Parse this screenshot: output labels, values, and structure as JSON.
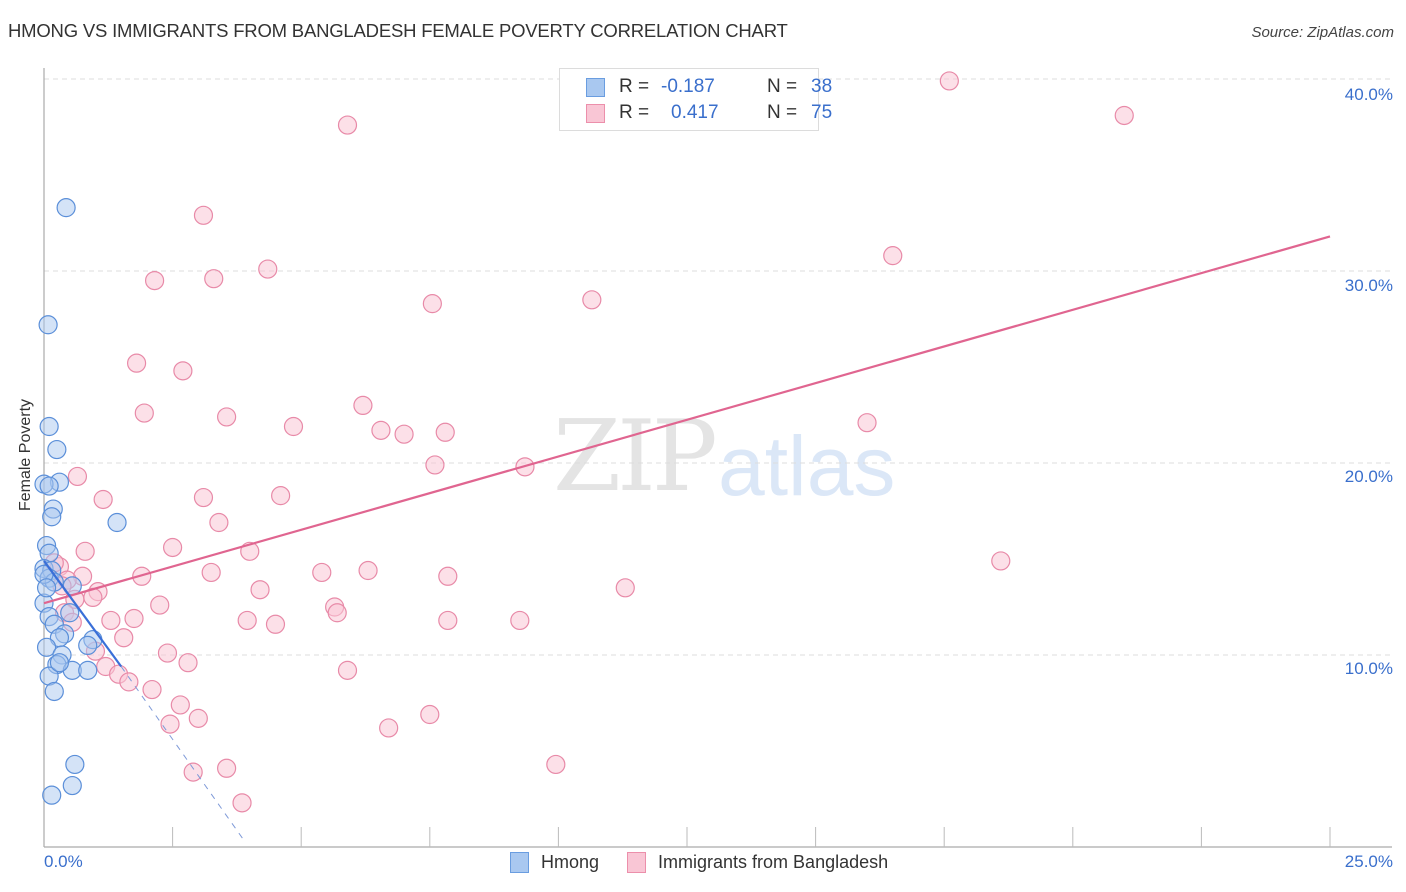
{
  "header": {
    "title": "HMONG VS IMMIGRANTS FROM BANGLADESH FEMALE POVERTY CORRELATION CHART",
    "source": "Source: ZipAtlas.com"
  },
  "watermark": {
    "zip": "ZIP",
    "atlas": "atlas"
  },
  "legend_top": {
    "rows": [
      {
        "r_label": "R =",
        "r_value": "-0.187",
        "n_label": "N =",
        "n_value": "38",
        "color": "#a9c8f0",
        "border": "#6a9de0"
      },
      {
        "r_label": "R =",
        "r_value": "0.417",
        "n_label": "N =",
        "n_value": "75",
        "color": "#f9c6d5",
        "border": "#ec8fab"
      }
    ]
  },
  "legend_bottom": {
    "items": [
      {
        "label": "Hmong",
        "color": "#a9c8f0",
        "border": "#6a9de0"
      },
      {
        "label": "Immigrants from Bangladesh",
        "color": "#f9c6d5",
        "border": "#ec8fab"
      }
    ]
  },
  "axes": {
    "ylabel": "Female Poverty",
    "yticks": [
      "10.0%",
      "20.0%",
      "30.0%",
      "40.0%"
    ],
    "xticks": [
      "0.0%",
      "25.0%"
    ]
  },
  "colors": {
    "hmong_fill": "#a9c8f0",
    "hmong_stroke": "#5b8fd9",
    "hmong_line": "#3a6fd8",
    "bangladesh_fill": "#f9c6d5",
    "bangladesh_stroke": "#e88aa8",
    "bangladesh_line": "#e06590",
    "tick_label": "#3a6fcc"
  },
  "chart_data": {
    "type": "scatter",
    "title": "HMONG VS IMMIGRANTS FROM BANGLADESH FEMALE POVERTY CORRELATION CHART",
    "xlabel": "",
    "ylabel": "Female Poverty",
    "xlim": [
      0,
      25
    ],
    "ylim": [
      0,
      42
    ],
    "x_ticks": [
      "0.0%",
      "25.0%"
    ],
    "y_ticks": [
      "10.0%",
      "20.0%",
      "30.0%",
      "40.0%"
    ],
    "grid": true,
    "legend_position": "top-center",
    "series": [
      {
        "name": "Hmong",
        "R": -0.187,
        "N": 38,
        "trend": {
          "x0": 0.0,
          "y0": 14.9,
          "x1": 1.5,
          "y1": 9.4,
          "dashed_extension_to": [
            3.9,
            0.3
          ]
        },
        "points": [
          [
            0.43,
            33.3
          ],
          [
            0.08,
            27.2
          ],
          [
            0.1,
            21.9
          ],
          [
            0.25,
            20.7
          ],
          [
            0.3,
            19.0
          ],
          [
            0.0,
            18.9
          ],
          [
            0.1,
            18.8
          ],
          [
            0.18,
            17.6
          ],
          [
            0.15,
            17.2
          ],
          [
            1.42,
            16.9
          ],
          [
            0.05,
            15.7
          ],
          [
            0.1,
            15.3
          ],
          [
            0.0,
            14.5
          ],
          [
            0.15,
            14.4
          ],
          [
            0.1,
            14.0
          ],
          [
            0.2,
            13.8
          ],
          [
            0.55,
            13.6
          ],
          [
            0.0,
            12.7
          ],
          [
            0.5,
            12.2
          ],
          [
            0.1,
            12.0
          ],
          [
            0.2,
            11.6
          ],
          [
            0.4,
            11.1
          ],
          [
            0.95,
            10.8
          ],
          [
            0.3,
            10.9
          ],
          [
            0.05,
            10.4
          ],
          [
            0.85,
            10.5
          ],
          [
            0.35,
            10.0
          ],
          [
            0.25,
            9.5
          ],
          [
            0.55,
            9.2
          ],
          [
            0.85,
            9.2
          ],
          [
            0.1,
            8.9
          ],
          [
            0.2,
            8.1
          ],
          [
            0.6,
            4.3
          ],
          [
            0.55,
            3.2
          ],
          [
            0.15,
            2.7
          ],
          [
            0.0,
            14.2
          ],
          [
            0.05,
            13.5
          ],
          [
            0.3,
            9.6
          ]
        ]
      },
      {
        "name": "Immigrants from Bangladesh",
        "R": 0.417,
        "N": 75,
        "trend": {
          "x0": 0.0,
          "y0": 12.7,
          "x1": 25.0,
          "y1": 31.8
        },
        "points": [
          [
            17.6,
            39.9
          ],
          [
            21.0,
            38.1
          ],
          [
            5.9,
            37.6
          ],
          [
            3.1,
            32.9
          ],
          [
            16.5,
            30.8
          ],
          [
            4.35,
            30.1
          ],
          [
            3.3,
            29.6
          ],
          [
            2.15,
            29.5
          ],
          [
            7.55,
            28.3
          ],
          [
            10.65,
            28.5
          ],
          [
            1.8,
            25.2
          ],
          [
            2.7,
            24.8
          ],
          [
            6.2,
            23.0
          ],
          [
            1.95,
            22.6
          ],
          [
            3.55,
            22.4
          ],
          [
            16.0,
            22.1
          ],
          [
            4.85,
            21.9
          ],
          [
            6.55,
            21.7
          ],
          [
            7.0,
            21.5
          ],
          [
            7.8,
            21.6
          ],
          [
            7.6,
            19.9
          ],
          [
            9.35,
            19.8
          ],
          [
            0.65,
            19.3
          ],
          [
            1.15,
            18.1
          ],
          [
            3.1,
            18.2
          ],
          [
            4.6,
            18.3
          ],
          [
            3.4,
            16.9
          ],
          [
            18.6,
            14.9
          ],
          [
            2.5,
            15.6
          ],
          [
            0.8,
            15.4
          ],
          [
            4.0,
            15.4
          ],
          [
            0.3,
            14.6
          ],
          [
            3.25,
            14.3
          ],
          [
            5.4,
            14.3
          ],
          [
            6.3,
            14.4
          ],
          [
            0.75,
            14.1
          ],
          [
            1.9,
            14.1
          ],
          [
            7.85,
            14.1
          ],
          [
            11.3,
            13.5
          ],
          [
            0.45,
            13.9
          ],
          [
            4.2,
            13.4
          ],
          [
            1.05,
            13.3
          ],
          [
            0.6,
            12.9
          ],
          [
            0.95,
            13.0
          ],
          [
            2.25,
            12.6
          ],
          [
            5.65,
            12.5
          ],
          [
            5.7,
            12.2
          ],
          [
            0.4,
            12.2
          ],
          [
            0.55,
            11.7
          ],
          [
            1.3,
            11.8
          ],
          [
            1.75,
            11.9
          ],
          [
            3.95,
            11.8
          ],
          [
            4.5,
            11.6
          ],
          [
            7.85,
            11.8
          ],
          [
            9.25,
            11.8
          ],
          [
            1.55,
            10.9
          ],
          [
            2.4,
            10.1
          ],
          [
            2.8,
            9.6
          ],
          [
            1.2,
            9.4
          ],
          [
            1.45,
            9.0
          ],
          [
            5.9,
            9.2
          ],
          [
            1.65,
            8.6
          ],
          [
            2.1,
            8.2
          ],
          [
            2.65,
            7.4
          ],
          [
            2.45,
            6.4
          ],
          [
            3.0,
            6.7
          ],
          [
            7.5,
            6.9
          ],
          [
            6.7,
            6.2
          ],
          [
            2.9,
            3.9
          ],
          [
            3.55,
            4.1
          ],
          [
            9.95,
            4.3
          ],
          [
            3.85,
            2.3
          ],
          [
            0.2,
            14.8
          ],
          [
            0.35,
            13.6
          ],
          [
            1.0,
            10.2
          ]
        ]
      }
    ]
  }
}
